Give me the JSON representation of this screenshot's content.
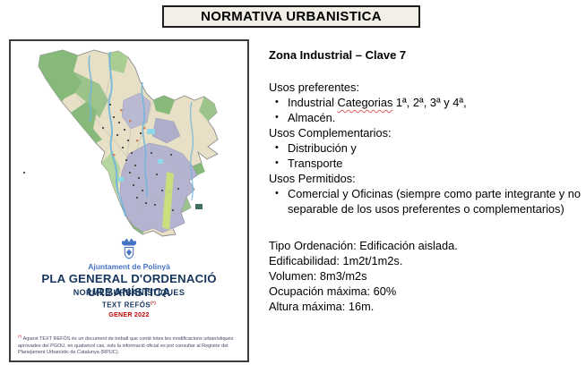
{
  "colors": {
    "title_bar_bg": "#f1efe6",
    "navy": "#17365d",
    "brand_blue": "#4472c4",
    "accent_red": "#c00000",
    "map_green": "#87b97b",
    "map_beige": "#e7e0c6",
    "map_urban_lavender": "#b4b4d0",
    "map_river_blue": "#6fb6dc"
  },
  "title_bar": {
    "text": "NORMATIVA URBANISTICA"
  },
  "map_panel": {
    "map_alt": "map-of-polinya-municipality",
    "org": "Ajuntament de Polinyà",
    "plan_title": "PLA GENERAL D'ORDENACIÓ URBANÍSTICA",
    "subtitle": "NORMES URBANÍSTIQUES",
    "doc_type": "TEXT REFÓS",
    "doc_type_mark": "(*)",
    "date": "GENER 2022",
    "footnote_mark": "(*)",
    "footnote": "Aquest TEXT REFÓS és un document de treball que conté totes les modificacions urbanístiques aprovades del PGOU, en qualsevol cas, sols la informació oficial es pot consultar al Registre del Planejament Urbanístic de Catalunya (RPUC)."
  },
  "content": {
    "heading": "Zona Industrial – Clave 7",
    "lines": [
      {
        "type": "label",
        "text": "Usos preferentes:"
      },
      {
        "type": "bullet",
        "text": "Industrial Categorias 1ª, 2ª, 3ª y 4ª,",
        "wavy_word": "Categorias"
      },
      {
        "type": "bullet",
        "text": "Almacén."
      },
      {
        "type": "label",
        "text": "Usos Complementarios:"
      },
      {
        "type": "bullet",
        "text": "Distribución y"
      },
      {
        "type": "bullet",
        "text": "Transporte"
      },
      {
        "type": "label",
        "text": "Usos Permitidos:"
      },
      {
        "type": "bullet_justified",
        "text": "Comercial y Oficinas (siempre como parte integrante y no separable de los usos preferentes o complementarios)"
      },
      {
        "type": "gap"
      },
      {
        "type": "plain",
        "text": "Tipo Ordenación: Edificación aislada."
      },
      {
        "type": "plain",
        "text": "Edificabilidad: 1m2t/1m2s."
      },
      {
        "type": "plain",
        "text": "Volumen: 8m3/m2s"
      },
      {
        "type": "plain",
        "text": "Ocupación máxima: 60%"
      },
      {
        "type": "plain",
        "text": "Altura máxima: 16m."
      }
    ]
  }
}
